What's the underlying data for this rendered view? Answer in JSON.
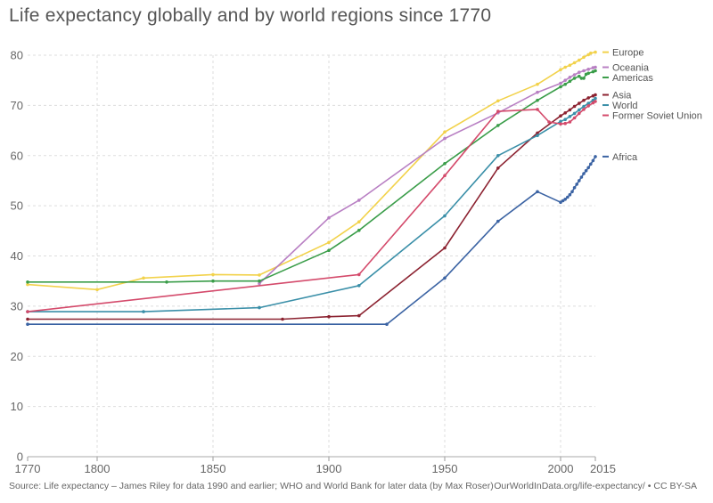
{
  "title": "Life expectancy globally and by world regions since 1770",
  "footer": {
    "source": "Source: Life expectancy – James Riley for data 1990 and earlier; WHO and World Bank for later data (by Max Roser)",
    "credit": "OurWorldInData.org/life-expectancy/ • CC BY-SA"
  },
  "chart_data": {
    "type": "line",
    "title": "Life expectancy globally and by world regions since 1770",
    "xlabel": "",
    "ylabel": "",
    "xlim": [
      1770,
      2015
    ],
    "ylim": [
      0,
      80
    ],
    "grid": true,
    "legend_placement": "right",
    "x_ticks": [
      1770,
      1800,
      1850,
      1900,
      1950,
      2000,
      2015
    ],
    "y_ticks": [
      0,
      10,
      20,
      30,
      40,
      50,
      60,
      70,
      80
    ],
    "series": [
      {
        "name": "Europe",
        "color": "#f2d24b",
        "points": [
          [
            1770,
            34.3
          ],
          [
            1800,
            33.3
          ],
          [
            1820,
            35.6
          ],
          [
            1850,
            36.3
          ],
          [
            1870,
            36.2
          ],
          [
            1900,
            42.7
          ],
          [
            1913,
            46.8
          ],
          [
            1950,
            64.7
          ],
          [
            1973,
            70.9
          ],
          [
            1990,
            74.2
          ],
          [
            2000,
            77.1
          ],
          [
            2002,
            77.6
          ],
          [
            2004,
            78.0
          ],
          [
            2006,
            78.5
          ],
          [
            2008,
            79.0
          ],
          [
            2010,
            79.6
          ],
          [
            2012,
            80.1
          ],
          [
            2013,
            80.4
          ],
          [
            2015,
            80.6
          ]
        ]
      },
      {
        "name": "Oceania",
        "color": "#b87fc3",
        "points": [
          [
            1870,
            34.5
          ],
          [
            1900,
            47.6
          ],
          [
            1913,
            51.1
          ],
          [
            1950,
            63.4
          ],
          [
            1973,
            68.5
          ],
          [
            1990,
            72.6
          ],
          [
            2000,
            74.4
          ],
          [
            2002,
            75.0
          ],
          [
            2004,
            75.6
          ],
          [
            2006,
            76.1
          ],
          [
            2008,
            76.6
          ],
          [
            2010,
            76.9
          ],
          [
            2012,
            77.2
          ],
          [
            2014,
            77.5
          ],
          [
            2015,
            77.6
          ]
        ]
      },
      {
        "name": "Americas",
        "color": "#3a9d49",
        "points": [
          [
            1770,
            34.8
          ],
          [
            1830,
            34.8
          ],
          [
            1850,
            35.0
          ],
          [
            1870,
            35.0
          ],
          [
            1900,
            41.1
          ],
          [
            1913,
            45.1
          ],
          [
            1950,
            58.4
          ],
          [
            1973,
            66.0
          ],
          [
            1990,
            71.0
          ],
          [
            2000,
            73.7
          ],
          [
            2002,
            74.2
          ],
          [
            2004,
            74.8
          ],
          [
            2006,
            75.4
          ],
          [
            2008,
            75.8
          ],
          [
            2009,
            75.4
          ],
          [
            2010,
            75.4
          ],
          [
            2011,
            76.2
          ],
          [
            2012,
            76.4
          ],
          [
            2014,
            76.7
          ],
          [
            2015,
            76.9
          ]
        ]
      },
      {
        "name": "Asia",
        "color": "#8c2331",
        "points": [
          [
            1770,
            27.4
          ],
          [
            1880,
            27.4
          ],
          [
            1900,
            27.9
          ],
          [
            1913,
            28.1
          ],
          [
            1950,
            41.6
          ],
          [
            1973,
            57.5
          ],
          [
            1990,
            64.5
          ],
          [
            2000,
            67.9
          ],
          [
            2002,
            68.5
          ],
          [
            2004,
            69.1
          ],
          [
            2006,
            69.8
          ],
          [
            2008,
            70.4
          ],
          [
            2010,
            71.0
          ],
          [
            2012,
            71.5
          ],
          [
            2014,
            71.9
          ],
          [
            2015,
            72.1
          ]
        ]
      },
      {
        "name": "World",
        "color": "#3a8fa8",
        "points": [
          [
            1770,
            28.9
          ],
          [
            1820,
            28.9
          ],
          [
            1870,
            29.7
          ],
          [
            1913,
            34.1
          ],
          [
            1950,
            48.0
          ],
          [
            1973,
            60.0
          ],
          [
            1990,
            64.0
          ],
          [
            2000,
            66.8
          ],
          [
            2002,
            67.2
          ],
          [
            2004,
            67.8
          ],
          [
            2006,
            68.4
          ],
          [
            2008,
            69.1
          ],
          [
            2010,
            69.8
          ],
          [
            2012,
            70.4
          ],
          [
            2014,
            71.0
          ],
          [
            2015,
            71.4
          ]
        ]
      },
      {
        "name": "Former Soviet Union",
        "color": "#d44a6b",
        "points": [
          [
            1770,
            28.9
          ],
          [
            1913,
            36.3
          ],
          [
            1950,
            56.0
          ],
          [
            1973,
            68.8
          ],
          [
            1990,
            69.2
          ],
          [
            1995,
            66.7
          ],
          [
            2000,
            66.3
          ],
          [
            2002,
            66.4
          ],
          [
            2004,
            66.7
          ],
          [
            2006,
            67.5
          ],
          [
            2008,
            68.4
          ],
          [
            2010,
            69.2
          ],
          [
            2012,
            69.9
          ],
          [
            2014,
            70.5
          ],
          [
            2015,
            70.8
          ]
        ]
      },
      {
        "name": "Africa",
        "color": "#3b63a3",
        "points": [
          [
            1770,
            26.4
          ],
          [
            1925,
            26.4
          ],
          [
            1950,
            35.6
          ],
          [
            1973,
            46.9
          ],
          [
            1990,
            52.8
          ],
          [
            2000,
            50.7
          ],
          [
            2001,
            51.0
          ],
          [
            2002,
            51.3
          ],
          [
            2003,
            51.7
          ],
          [
            2004,
            52.2
          ],
          [
            2005,
            52.8
          ],
          [
            2006,
            53.6
          ],
          [
            2007,
            54.3
          ],
          [
            2008,
            55.0
          ],
          [
            2009,
            55.7
          ],
          [
            2010,
            56.4
          ],
          [
            2011,
            57.0
          ],
          [
            2012,
            57.6
          ],
          [
            2013,
            58.3
          ],
          [
            2014,
            59.0
          ],
          [
            2015,
            59.8
          ]
        ]
      }
    ]
  }
}
